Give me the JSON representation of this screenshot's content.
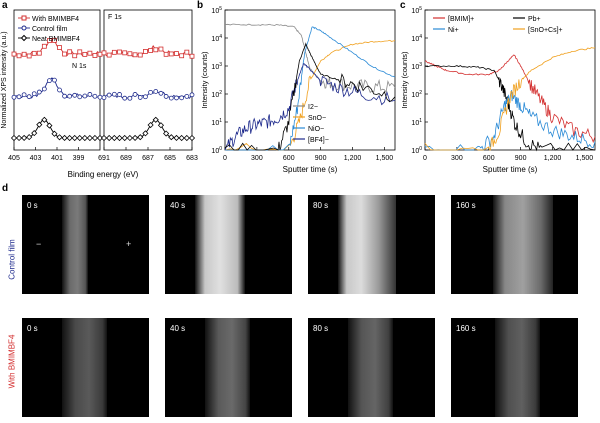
{
  "panel_letters": {
    "a": "a",
    "b": "b",
    "c": "c",
    "d": "d"
  },
  "colors": {
    "red": "#d32f2f",
    "blue": "#1e2a8c",
    "black": "#000000",
    "orange": "#f0a01e",
    "lightblue": "#2a8ad6",
    "grey": "#8a8a8a"
  },
  "chart_data": [
    {
      "id": "a",
      "type": "line",
      "ylabel": "Normalized XPS intensity (a.u.)",
      "xlabel": "Binding energy (eV)",
      "legend": [
        "With BMIMBF4",
        "Control film",
        "Neat BMIMBF4"
      ],
      "subpanels": [
        {
          "title": "N 1s",
          "xlim": [
            405,
            397
          ],
          "ticks": [
            405,
            403,
            401,
            399
          ],
          "peak_center": 401.5,
          "peak_center_neat": 402.2
        },
        {
          "title": "F 1s",
          "xlim": [
            691,
            683
          ],
          "ticks": [
            691,
            689,
            687,
            685,
            683
          ],
          "peak_center": 686.3
        }
      ],
      "series": [
        {
          "name": "With BMIMBF4",
          "color": "#d32f2f",
          "marker": "square",
          "offset": 2.0,
          "peak_n": 0.55,
          "peak_f": 0.25
        },
        {
          "name": "Control film",
          "color": "#1e2a8c",
          "marker": "circle",
          "offset": 1.0,
          "peak_n": 0.65,
          "peak_f": 0.2
        },
        {
          "name": "Neat BMIMBF4",
          "color": "#000000",
          "marker": "diamond",
          "offset": 0.0,
          "peak_n": 0.7,
          "peak_f": 0.7
        }
      ]
    },
    {
      "id": "b",
      "type": "line",
      "xlabel": "Sputter time (s)",
      "ylabel": "Intensity (counts)",
      "xlim": [
        0,
        1600
      ],
      "xticks": [
        0,
        300,
        600,
        900,
        "1,200",
        "1,500"
      ],
      "yticks_exp": [
        0,
        1,
        2,
        3,
        4,
        5
      ],
      "yscale": "log",
      "legend": [
        "I2−",
        "SnO−",
        "NiO−",
        "[BF4]−"
      ],
      "series": [
        {
          "name": "I2−",
          "color": "#8a8a8a",
          "points": [
            [
              0,
              30000
            ],
            [
              300,
              30000
            ],
            [
              500,
              29000
            ],
            [
              650,
              25000
            ],
            [
              720,
              12000
            ],
            [
              760,
              3000
            ],
            [
              800,
              800
            ],
            [
              900,
              300
            ],
            [
              1000,
              250
            ],
            [
              1200,
              200
            ],
            [
              1400,
              180
            ],
            [
              1600,
              170
            ]
          ]
        },
        {
          "name": "SnO−",
          "color": "#f0a01e",
          "points": [
            [
              0,
              1
            ],
            [
              600,
              1
            ],
            [
              700,
              10
            ],
            [
              800,
              300
            ],
            [
              900,
              1500
            ],
            [
              1000,
              3000
            ],
            [
              1200,
              6000
            ],
            [
              1400,
              7500
            ],
            [
              1600,
              8000
            ]
          ]
        },
        {
          "name": "NiO−",
          "color": "#2a8ad6",
          "points": [
            [
              0,
              1
            ],
            [
              600,
              1
            ],
            [
              680,
              30
            ],
            [
              750,
              3000
            ],
            [
              820,
              25000
            ],
            [
              900,
              18000
            ],
            [
              1000,
              10000
            ],
            [
              1200,
              3000
            ],
            [
              1400,
              900
            ],
            [
              1600,
              400
            ]
          ]
        },
        {
          "name": "[BF4]−",
          "color": "#1e2a8c",
          "points": [
            [
              0,
              1
            ],
            [
              100,
              3
            ],
            [
              200,
              6
            ],
            [
              300,
              8
            ],
            [
              400,
              10
            ],
            [
              500,
              14
            ],
            [
              600,
              30
            ],
            [
              680,
              300
            ],
            [
              740,
              1200
            ],
            [
              780,
              900
            ],
            [
              900,
              300
            ],
            [
              1100,
              150
            ],
            [
              1300,
              100
            ],
            [
              1600,
              60
            ]
          ]
        },
        {
          "name": "black",
          "color": "#000000",
          "points": [
            [
              0,
              1
            ],
            [
              500,
              1
            ],
            [
              600,
              10
            ],
            [
              700,
              1500
            ],
            [
              760,
              6000
            ],
            [
              820,
              2000
            ],
            [
              900,
              500
            ],
            [
              1100,
              300
            ],
            [
              1300,
              180
            ],
            [
              1600,
              80
            ]
          ]
        }
      ]
    },
    {
      "id": "c",
      "type": "line",
      "xlabel": "Sputter time (s)",
      "ylabel": "Intensity (counts)",
      "xlim": [
        0,
        1600
      ],
      "xticks": [
        0,
        300,
        600,
        900,
        "1,200",
        "1,500"
      ],
      "yticks_exp": [
        0,
        1,
        2,
        3,
        4,
        5
      ],
      "yscale": "log",
      "legend": [
        "[BMIM]+",
        "Pb+",
        "Ni+",
        "[SnO+Cs]+"
      ],
      "series": [
        {
          "name": "[BMIM]+",
          "color": "#d32f2f",
          "points": [
            [
              0,
              1500
            ],
            [
              100,
              1000
            ],
            [
              200,
              700
            ],
            [
              400,
              500
            ],
            [
              600,
              500
            ],
            [
              700,
              700
            ],
            [
              780,
              1500
            ],
            [
              840,
              2500
            ],
            [
              900,
              1000
            ],
            [
              1000,
              200
            ],
            [
              1100,
              50
            ],
            [
              1200,
              15
            ],
            [
              1400,
              5
            ],
            [
              1600,
              3
            ]
          ]
        },
        {
          "name": "Pb+",
          "color": "#000000",
          "points": [
            [
              0,
              1000
            ],
            [
              300,
              1000
            ],
            [
              500,
              900
            ],
            [
              650,
              700
            ],
            [
              720,
              200
            ],
            [
              780,
              50
            ],
            [
              850,
              8
            ],
            [
              950,
              2
            ],
            [
              1100,
              1
            ],
            [
              1600,
              1
            ]
          ]
        },
        {
          "name": "Ni+",
          "color": "#2a8ad6",
          "points": [
            [
              0,
              1
            ],
            [
              500,
              1
            ],
            [
              650,
              3
            ],
            [
              750,
              40
            ],
            [
              820,
              90
            ],
            [
              900,
              40
            ],
            [
              1000,
              15
            ],
            [
              1200,
              5
            ],
            [
              1400,
              3
            ],
            [
              1600,
              2
            ]
          ]
        },
        {
          "name": "[SnO+Cs]+",
          "color": "#f0a01e",
          "points": [
            [
              0,
              1
            ],
            [
              600,
              1
            ],
            [
              700,
              5
            ],
            [
              800,
              80
            ],
            [
              900,
              300
            ],
            [
              1000,
              700
            ],
            [
              1200,
              2000
            ],
            [
              1400,
              3500
            ],
            [
              1600,
              4500
            ]
          ]
        }
      ]
    }
  ],
  "panel_d": {
    "rows": [
      {
        "label": "Control film",
        "color": "#1e2a8c",
        "frames": [
          "0 s",
          "40 s",
          "80 s",
          "160 s"
        ]
      },
      {
        "label": "With BMIMBF4",
        "color": "#d32f2f",
        "frames": [
          "0 s",
          "40 s",
          "80 s",
          "160 s"
        ]
      }
    ],
    "minus": "−",
    "plus": "+"
  }
}
